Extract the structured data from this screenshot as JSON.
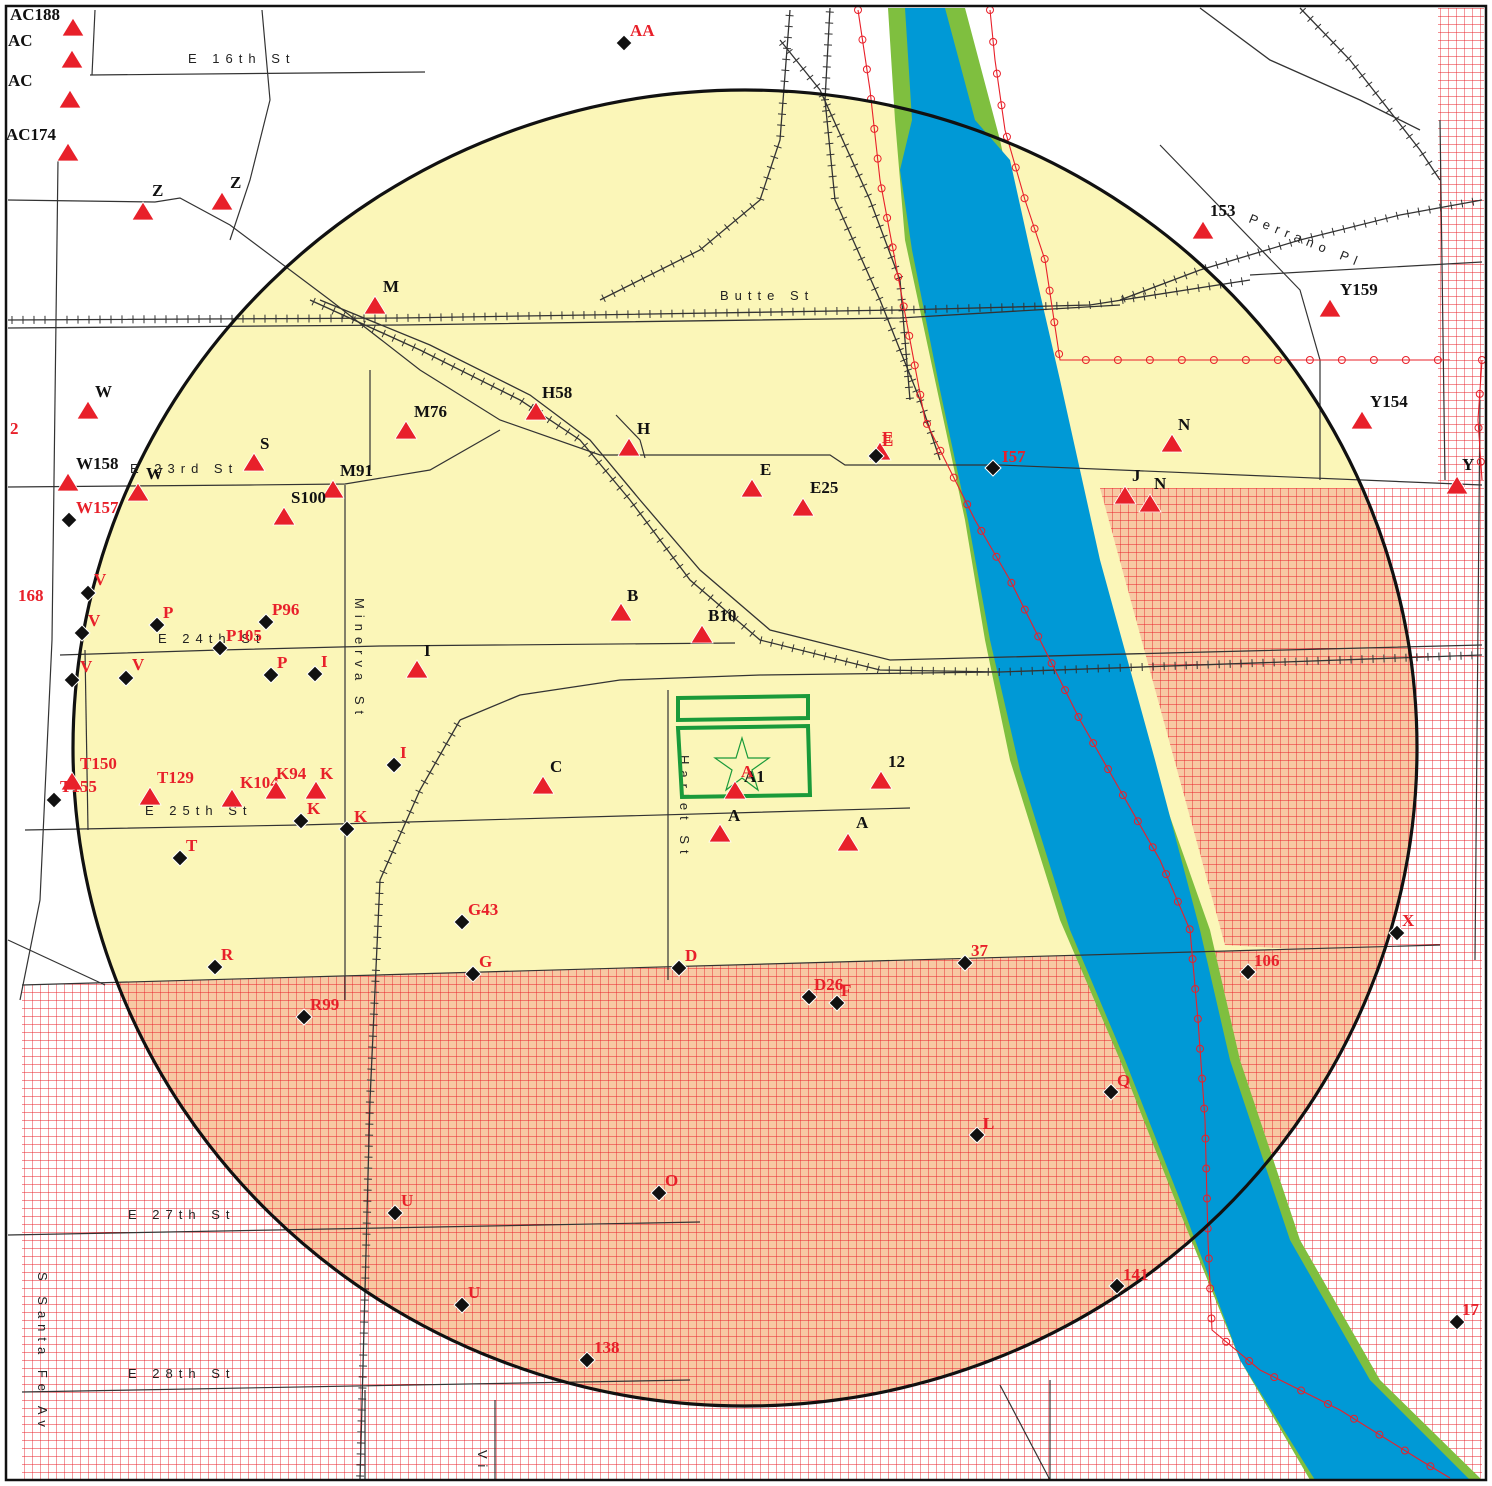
{
  "map": {
    "colors": {
      "buffer_fill": "#fbf6b8",
      "buffer_stroke": "#111111",
      "flood_grid": "#e8202a",
      "flood_fill": "#f7c9a3",
      "river": "#0099d6",
      "river_bank": "#7fbf3f",
      "site_outline": "#1a9a3a",
      "marker_triangle": "#e8202a",
      "marker_diamond": "#111111",
      "label_red": "#e8202a",
      "label_black": "#111111"
    },
    "streets": [
      "E 16th St",
      "Butte St",
      "Perrano Pl",
      "E 23rd St",
      "E 24th St",
      "Minerva St",
      "Harlet St",
      "E 25th St",
      "E 27th St",
      "E 28th St",
      "S Santa Fe Av",
      "Vi"
    ],
    "site_label": "A1",
    "triangle_labels": [
      "AC188",
      "AC",
      "AC",
      "AC174",
      "Z",
      "Z",
      "153",
      "M",
      "Y159",
      "W",
      "H58",
      "M76",
      "H",
      "E",
      "N",
      "S",
      "W158",
      "W",
      "M91",
      "E",
      "E25",
      "J",
      "N",
      "Y154",
      "Y",
      "S100",
      "B",
      "B10",
      "I",
      "C",
      "A",
      "12",
      "A",
      "A",
      "T150",
      "T129",
      "K104",
      "K94",
      "K"
    ],
    "diamond_labels": [
      "AA",
      "E",
      "I57",
      "W157",
      "V",
      "V",
      "V",
      "V",
      "P",
      "P96",
      "P105",
      "P",
      "I",
      "I",
      "T155",
      "K",
      "K",
      "T",
      "G43",
      "R",
      "G",
      "D",
      "37",
      "106",
      "D26",
      "F",
      "R99",
      "X",
      "Q",
      "L",
      "O",
      "U",
      "141",
      "U",
      "138",
      "17"
    ],
    "edge_labels": [
      "2",
      "168"
    ]
  }
}
